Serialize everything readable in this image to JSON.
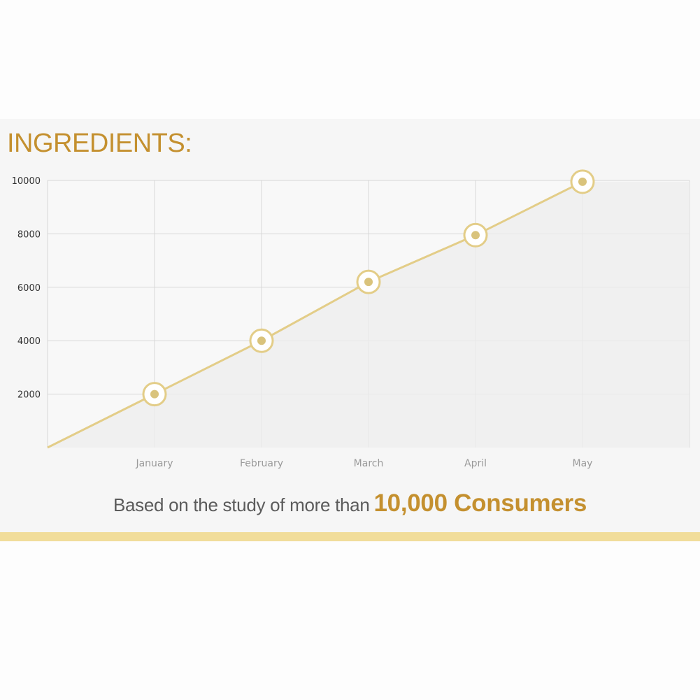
{
  "title": "INGREDIENTS:",
  "caption": {
    "lead": "Based on the study of more than",
    "emphasis": "10,000 Consumers"
  },
  "colors": {
    "accent": "#c4902f",
    "line": "#e3cd88",
    "marker": "#d9c37c",
    "grid": "#d7d7d7",
    "bottom_bar": "#f1dd9a"
  },
  "chart_data": {
    "type": "line",
    "categories": [
      "January",
      "February",
      "March",
      "April",
      "May"
    ],
    "x": [
      0,
      1,
      2,
      3,
      4,
      5
    ],
    "series": [
      {
        "values": [
          2000,
          4000,
          6200,
          7950,
          9950
        ],
        "origin_value": 0
      }
    ],
    "y_ticks": [
      "10000",
      "8000",
      "6000",
      "4000",
      "2000"
    ],
    "ylim": [
      0,
      10000
    ],
    "grid": true,
    "area_fill": true
  }
}
